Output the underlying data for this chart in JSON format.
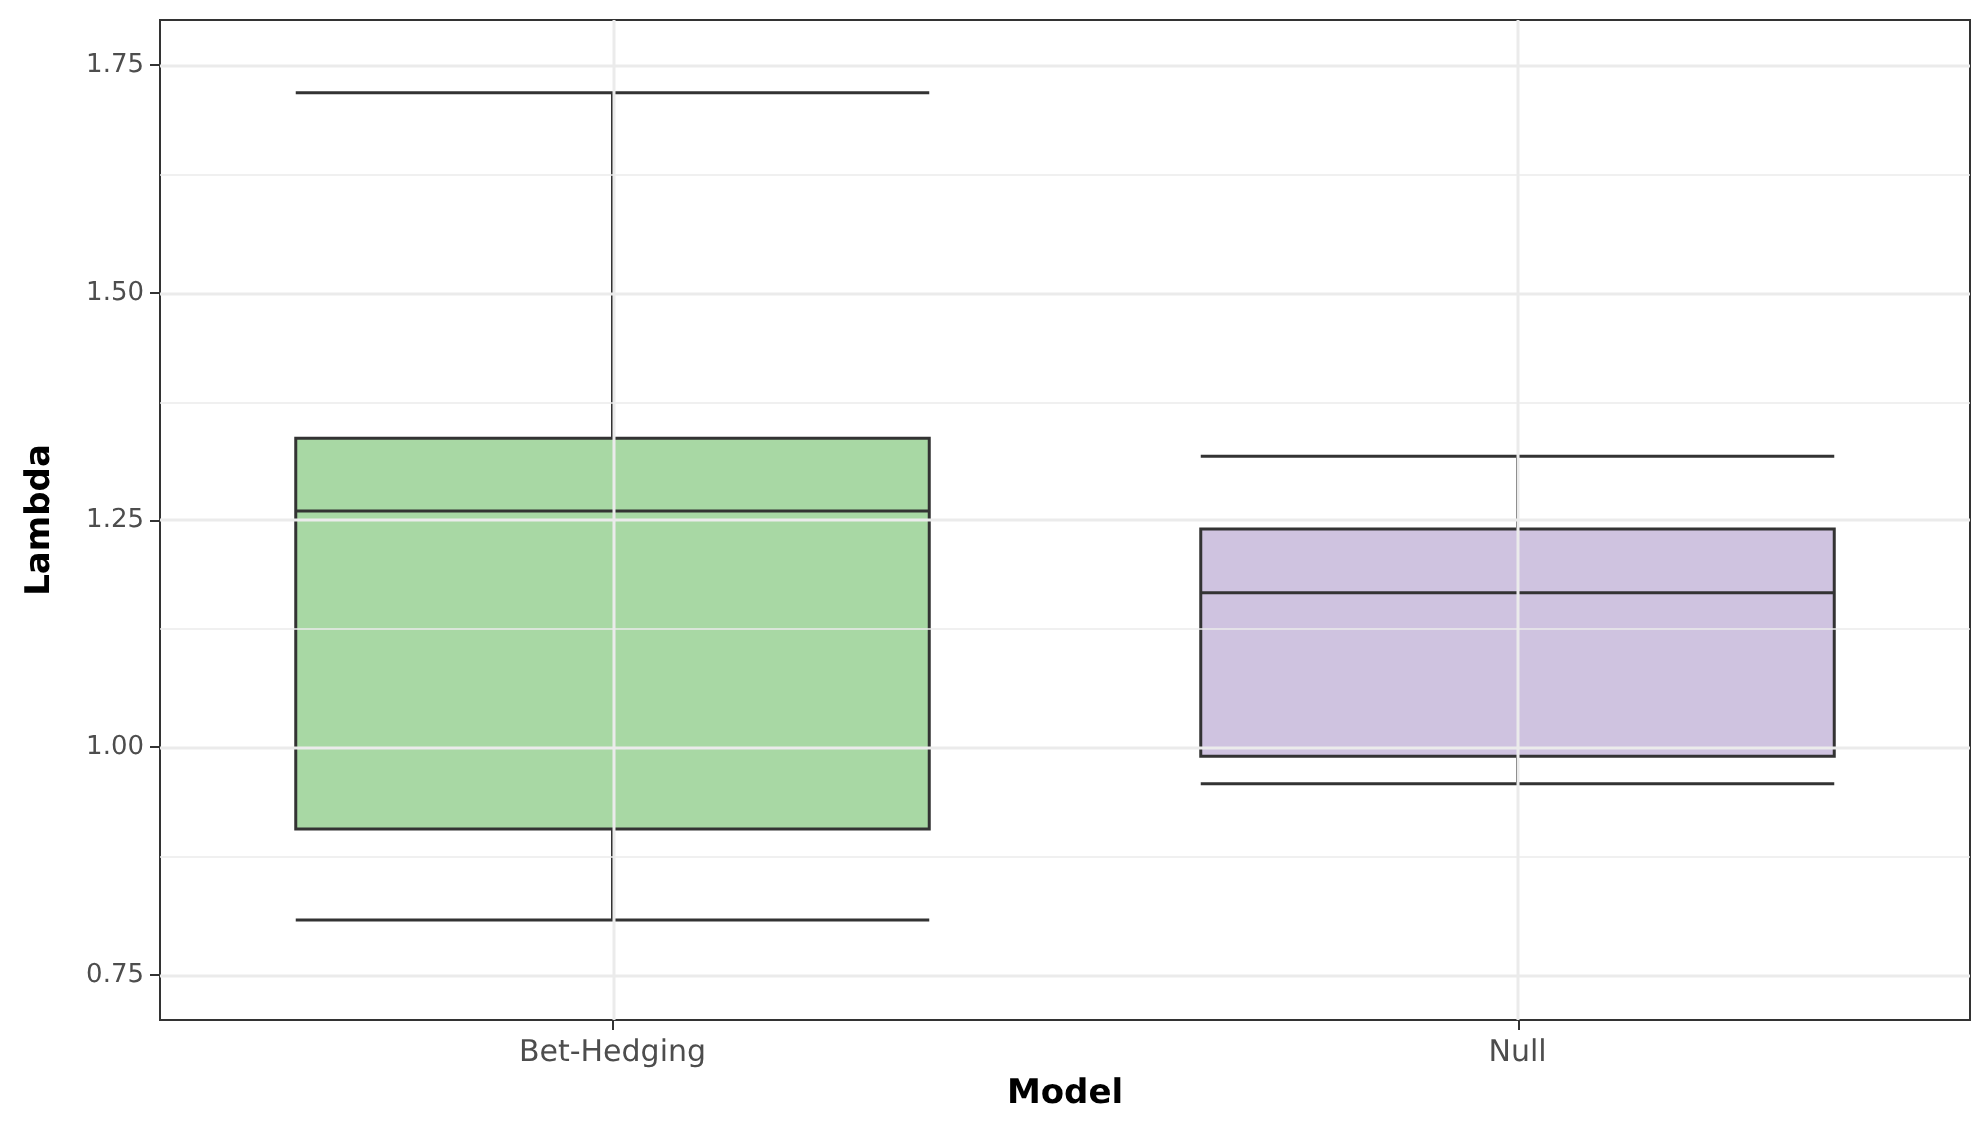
{
  "chart_data": {
    "type": "box",
    "xlabel": "Model",
    "ylabel": "Lambda",
    "categories": [
      "Bet-Hedging",
      "Null"
    ],
    "colors": [
      "#a8d8a4",
      "#cfc3e0"
    ],
    "boxes": [
      {
        "low": 0.81,
        "q1": 0.91,
        "median": 1.26,
        "q3": 1.34,
        "high": 1.72
      },
      {
        "low": 0.96,
        "q1": 0.99,
        "median": 1.17,
        "q3": 1.24,
        "high": 1.32
      }
    ],
    "ylim": [
      0.7,
      1.8
    ],
    "yticks": [
      {
        "value": 0.75,
        "label": "0.75"
      },
      {
        "value": 1,
        "label": "1.00"
      },
      {
        "value": 1.25,
        "label": "1.25"
      },
      {
        "value": 1.5,
        "label": "1.50"
      },
      {
        "value": 1.75,
        "label": "1.75"
      }
    ],
    "grid": true
  }
}
